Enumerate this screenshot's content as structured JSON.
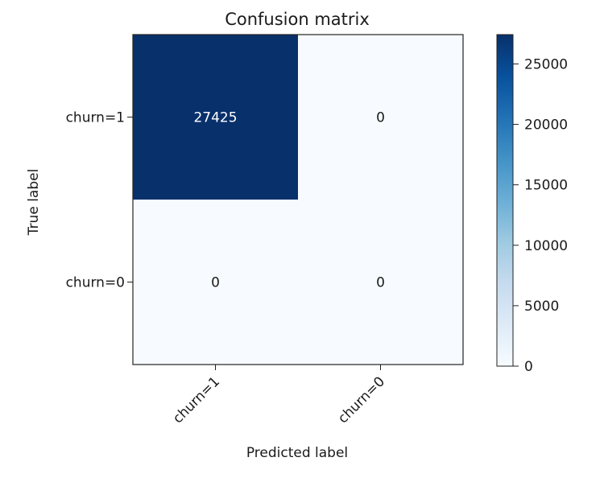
{
  "chart_data": {
    "type": "heatmap",
    "title": "Confusion matrix",
    "xlabel": "Predicted label",
    "ylabel": "True label",
    "x_categories": [
      "churn=1",
      "churn=0"
    ],
    "y_categories": [
      "churn=1",
      "churn=0"
    ],
    "values": [
      [
        27425,
        0
      ],
      [
        0,
        0
      ]
    ],
    "cell_labels": [
      [
        "27425",
        "0"
      ],
      [
        "0",
        "0"
      ]
    ],
    "colormap": "Blues",
    "color_min": "#f7fbff",
    "color_max": "#08306b",
    "colorbar": {
      "range": [
        0,
        27425
      ],
      "ticks": [
        0,
        5000,
        10000,
        15000,
        20000,
        25000
      ],
      "tick_labels": [
        "0",
        "5000",
        "10000",
        "15000",
        "20000",
        "25000"
      ]
    },
    "grid": false
  }
}
